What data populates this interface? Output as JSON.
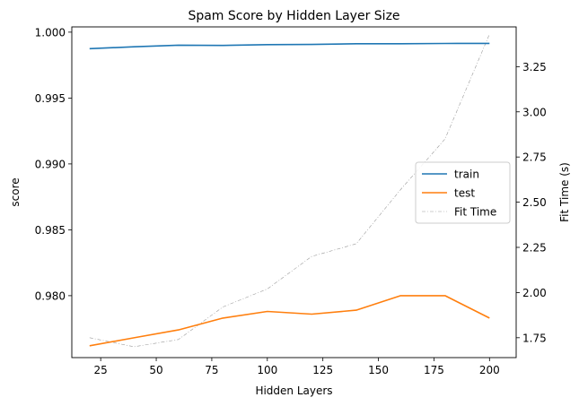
{
  "chart_data": {
    "type": "line",
    "title": "Spam Score by Hidden Layer Size",
    "xlabel": "Hidden Layers",
    "ylabel": "score",
    "y2label": "Fit Time (s)",
    "x": [
      20,
      40,
      60,
      80,
      100,
      120,
      140,
      160,
      180,
      200
    ],
    "xlim": [
      12,
      212
    ],
    "ylim": [
      0.9753,
      1.0004
    ],
    "y2lim": [
      1.64,
      3.47
    ],
    "xticks": [
      25,
      50,
      75,
      100,
      125,
      150,
      175,
      200
    ],
    "yticks": [
      0.98,
      0.985,
      0.99,
      0.995,
      1.0
    ],
    "ytick_labels": [
      "0.980",
      "0.985",
      "0.990",
      "0.995",
      "1.000"
    ],
    "y2ticks": [
      1.75,
      2.0,
      2.25,
      2.5,
      2.75,
      3.0,
      3.25
    ],
    "y2tick_labels": [
      "1.75",
      "2.00",
      "2.25",
      "2.50",
      "2.75",
      "3.00",
      "3.25"
    ],
    "grid": false,
    "legend_position": "center-right",
    "series": [
      {
        "name": "train",
        "axis": "left",
        "color": "#1f77b4",
        "style": "solid",
        "values": [
          0.99875,
          0.99889,
          0.99901,
          0.99899,
          0.99905,
          0.99907,
          0.99912,
          0.99912,
          0.99914,
          0.99915
        ]
      },
      {
        "name": "test",
        "axis": "left",
        "color": "#ff7f0e",
        "style": "solid",
        "values": [
          0.9762,
          0.9768,
          0.9774,
          0.9783,
          0.9788,
          0.9786,
          0.9789,
          0.98,
          0.98,
          0.9783
        ]
      },
      {
        "name": "Fit Time",
        "axis": "right",
        "color": "#9a9a9a",
        "style": "dashdot",
        "values": [
          1.75,
          1.7,
          1.74,
          1.92,
          2.02,
          2.2,
          2.27,
          2.57,
          2.85,
          3.43
        ]
      }
    ]
  }
}
